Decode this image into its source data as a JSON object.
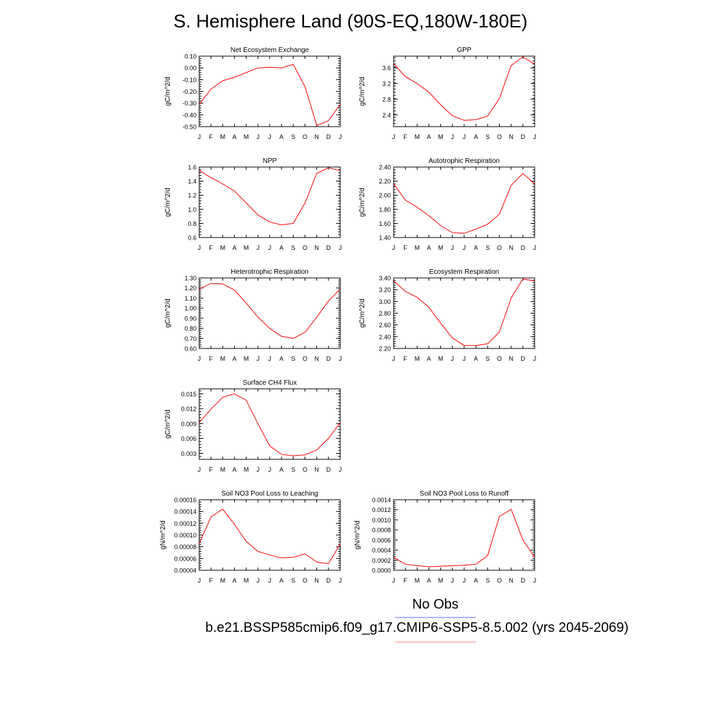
{
  "title": "S. Hemisphere Land (90S-EQ,180W-180E)",
  "legend": {
    "obs_label": "No Obs",
    "case_label": "b.e21.BSSP585cmip6.f09_g17.CMIP6-SSP5-8.5.002 (yrs 2045-2069)",
    "obs_color": "#6666ff",
    "case_color": "#ff8080"
  },
  "line_color": "#ff0000",
  "months": [
    "J",
    "F",
    "M",
    "A",
    "M",
    "J",
    "J",
    "A",
    "S",
    "O",
    "N",
    "D",
    "J"
  ],
  "chart_data": [
    {
      "type": "line",
      "title": "Net Ecosystem Exchange",
      "ylabel": "gC/m^2/d",
      "ylim": [
        -0.5,
        0.1
      ],
      "yticks": [
        0.1,
        0.0,
        -0.1,
        -0.2,
        -0.3,
        -0.4,
        -0.5
      ],
      "ytick_labels": [
        "0.10",
        "0.00",
        "-0.10",
        "-0.20",
        "-0.30",
        "-0.40",
        "-0.50"
      ],
      "values": [
        -0.31,
        -0.18,
        -0.11,
        -0.08,
        -0.04,
        0.0,
        0.005,
        0.0,
        0.03,
        -0.16,
        -0.49,
        -0.45,
        -0.31
      ]
    },
    {
      "type": "line",
      "title": "GPP",
      "ylabel": "gC/m^2/d",
      "ylim": [
        2.1,
        3.9
      ],
      "yticks": [
        3.6,
        3.2,
        2.8,
        2.4
      ],
      "ytick_labels": [
        "3.6",
        "3.2",
        "2.8",
        "2.4"
      ],
      "values": [
        3.7,
        3.38,
        3.2,
        2.98,
        2.66,
        2.38,
        2.26,
        2.28,
        2.37,
        2.82,
        3.66,
        3.88,
        3.7
      ]
    },
    {
      "type": "line",
      "title": "NPP",
      "ylabel": "gC/m^2/d",
      "ylim": [
        0.6,
        1.6
      ],
      "yticks": [
        1.6,
        1.4,
        1.2,
        1.0,
        0.8,
        0.6
      ],
      "ytick_labels": [
        "1.6",
        "1.4",
        "1.2",
        "1.0",
        "0.8",
        "0.6"
      ],
      "values": [
        1.55,
        1.45,
        1.36,
        1.26,
        1.09,
        0.92,
        0.82,
        0.78,
        0.8,
        1.09,
        1.51,
        1.59,
        1.55
      ]
    },
    {
      "type": "line",
      "title": "Autotrophic Respiration",
      "ylabel": "gC/m^2/d",
      "ylim": [
        1.4,
        2.4
      ],
      "yticks": [
        2.4,
        2.2,
        2.0,
        1.8,
        1.6,
        1.4
      ],
      "ytick_labels": [
        "2.40",
        "2.20",
        "2.00",
        "1.80",
        "1.60",
        "1.40"
      ],
      "values": [
        2.16,
        1.93,
        1.83,
        1.71,
        1.57,
        1.47,
        1.46,
        1.52,
        1.59,
        1.73,
        2.14,
        2.31,
        2.16
      ]
    },
    {
      "type": "line",
      "title": "Heterotrophic Respiration",
      "ylabel": "gC/m^2/d",
      "ylim": [
        0.6,
        1.3
      ],
      "yticks": [
        1.3,
        1.2,
        1.1,
        1.0,
        0.9,
        0.8,
        0.7,
        0.6
      ],
      "ytick_labels": [
        "1.30",
        "1.20",
        "1.10",
        "1.00",
        "0.90",
        "0.80",
        "0.70",
        "0.60"
      ],
      "values": [
        1.19,
        1.245,
        1.24,
        1.18,
        1.05,
        0.91,
        0.8,
        0.72,
        0.7,
        0.76,
        0.91,
        1.07,
        1.19
      ]
    },
    {
      "type": "line",
      "title": "Ecosystem Respiration",
      "ylabel": "gC/m^2/d",
      "ylim": [
        2.2,
        3.4
      ],
      "yticks": [
        3.4,
        3.2,
        3.0,
        2.8,
        2.6,
        2.4,
        2.2
      ],
      "ytick_labels": [
        "3.40",
        "3.20",
        "3.00",
        "2.80",
        "2.60",
        "2.40",
        "2.20"
      ],
      "values": [
        3.35,
        3.17,
        3.07,
        2.9,
        2.63,
        2.38,
        2.25,
        2.25,
        2.28,
        2.48,
        3.06,
        3.38,
        3.35
      ]
    },
    {
      "type": "line",
      "title": "Surface CH4 Flux",
      "ylabel": "gC/m^2/d",
      "ylim": [
        0.0018,
        0.016
      ],
      "yticks": [
        0.015,
        0.012,
        0.009,
        0.006,
        0.003
      ],
      "ytick_labels": [
        "0.015",
        "0.012",
        "0.009",
        "0.006",
        "0.003"
      ],
      "values": [
        0.0092,
        0.0119,
        0.0143,
        0.015,
        0.0137,
        0.009,
        0.0045,
        0.0028,
        0.0025,
        0.0027,
        0.0037,
        0.006,
        0.0092
      ]
    },
    null,
    {
      "type": "line",
      "title": "Soil NO3 Pool Loss to Leaching",
      "ylabel": "gN/m^2/d",
      "ylim": [
        4e-05,
        0.00016
      ],
      "yticks": [
        0.00016,
        0.00014,
        0.00012,
        0.0001,
        8e-05,
        6e-05,
        4e-05
      ],
      "ytick_labels": [
        "0.00016",
        "0.00014",
        "0.00012",
        "0.00010",
        "0.00008",
        "0.00006",
        "0.00004"
      ],
      "values": [
        8.5e-05,
        0.000131,
        0.000144,
        0.000118,
        8.9e-05,
        7.2e-05,
        6.6e-05,
        6.1e-05,
        6.2e-05,
        6.8e-05,
        5.4e-05,
        5.1e-05,
        8.5e-05
      ]
    },
    {
      "type": "line",
      "title": "Soil NO3 Pool Loss to Runoff",
      "ylabel": "gN/m^2/d",
      "ylim": [
        0.0,
        0.0014
      ],
      "yticks": [
        0.0014,
        0.0012,
        0.001,
        0.0008,
        0.0006,
        0.0004,
        0.0002,
        0.0
      ],
      "ytick_labels": [
        "0.0014",
        "0.0012",
        "0.0010",
        "0.0008",
        "0.0006",
        "0.0004",
        "0.0002",
        "0.0000"
      ],
      "values": [
        0.00026,
        0.00012,
        9e-05,
        7e-05,
        8e-05,
        9e-05,
        0.0001,
        0.00012,
        0.00029,
        0.00107,
        0.00121,
        0.0006,
        0.00026
      ]
    }
  ]
}
